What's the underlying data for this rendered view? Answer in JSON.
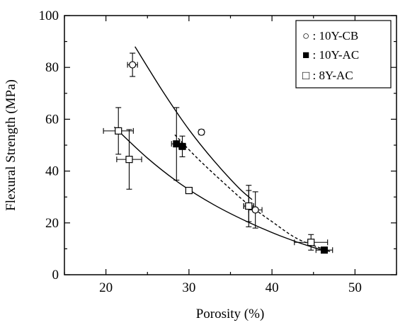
{
  "chart_data": {
    "type": "scatter",
    "title": "",
    "xlabel": "Porosity (%)",
    "ylabel": "Flexural Strength (MPa)",
    "xlim": [
      15,
      55
    ],
    "ylim": [
      0,
      100
    ],
    "xticks": [
      20,
      30,
      40,
      50
    ],
    "yticks": [
      0,
      20,
      40,
      60,
      80,
      100
    ],
    "x_tick_labels": [
      "20",
      "30",
      "40",
      "50"
    ],
    "y_tick_labels": [
      "0",
      "20",
      "40",
      "60",
      "80",
      "100"
    ],
    "legend_position": "top-right",
    "series": [
      {
        "name": "10Y-CB",
        "label": "○ : 10Y-CB",
        "marker": "open-circle",
        "points": [
          {
            "x": 23.2,
            "y": 81,
            "xerr": 0.6,
            "yerr": 4.5
          },
          {
            "x": 31.5,
            "y": 55,
            "xerr": 0,
            "yerr": 1
          },
          {
            "x": 38.0,
            "y": 25,
            "xerr": 0.8,
            "yerr": 7
          }
        ],
        "fit": {
          "style": "solid",
          "x": [
            23.5,
            27,
            30,
            33,
            36,
            37.6
          ],
          "y": [
            88,
            70,
            56,
            44,
            33.5,
            29
          ]
        }
      },
      {
        "name": "10Y-AC",
        "label": "■ : 10Y-AC",
        "marker": "filled-square",
        "points": [
          {
            "x": 28.5,
            "y": 50.5,
            "xerr": 0.6,
            "yerr": 14
          },
          {
            "x": 29.2,
            "y": 49.5,
            "xerr": 0.4,
            "yerr": 4
          },
          {
            "x": 37.2,
            "y": 26.5,
            "xerr": 0.6,
            "yerr": 6
          },
          {
            "x": 46.3,
            "y": 9.5,
            "xerr": 1,
            "yerr": 0.5
          }
        ],
        "fit": {
          "style": "dashed",
          "x": [
            28.3,
            31,
            34,
            37,
            40,
            43,
            46.5
          ],
          "y": [
            54,
            45,
            36,
            27.5,
            20.5,
            14,
            9.5
          ]
        }
      },
      {
        "name": "8Y-AC",
        "label": "□ :   8Y-AC",
        "marker": "open-square",
        "points": [
          {
            "x": 21.5,
            "y": 55.5,
            "xerr": 1.8,
            "yerr": 9
          },
          {
            "x": 22.8,
            "y": 44.5,
            "xerr": 1.5,
            "yerr": 11.5
          },
          {
            "x": 30.0,
            "y": 32.5,
            "xerr": 0,
            "yerr": 0
          },
          {
            "x": 37.2,
            "y": 26.5,
            "xerr": 0.6,
            "yerr": 8
          },
          {
            "x": 44.7,
            "y": 12.5,
            "xerr": 2,
            "yerr": 3
          }
        ],
        "fit": {
          "style": "solid",
          "x": [
            21,
            25,
            29,
            33,
            37,
            41,
            45,
            47
          ],
          "y": [
            57,
            45,
            35,
            27,
            20.5,
            15,
            10.5,
            9
          ]
        }
      }
    ]
  }
}
